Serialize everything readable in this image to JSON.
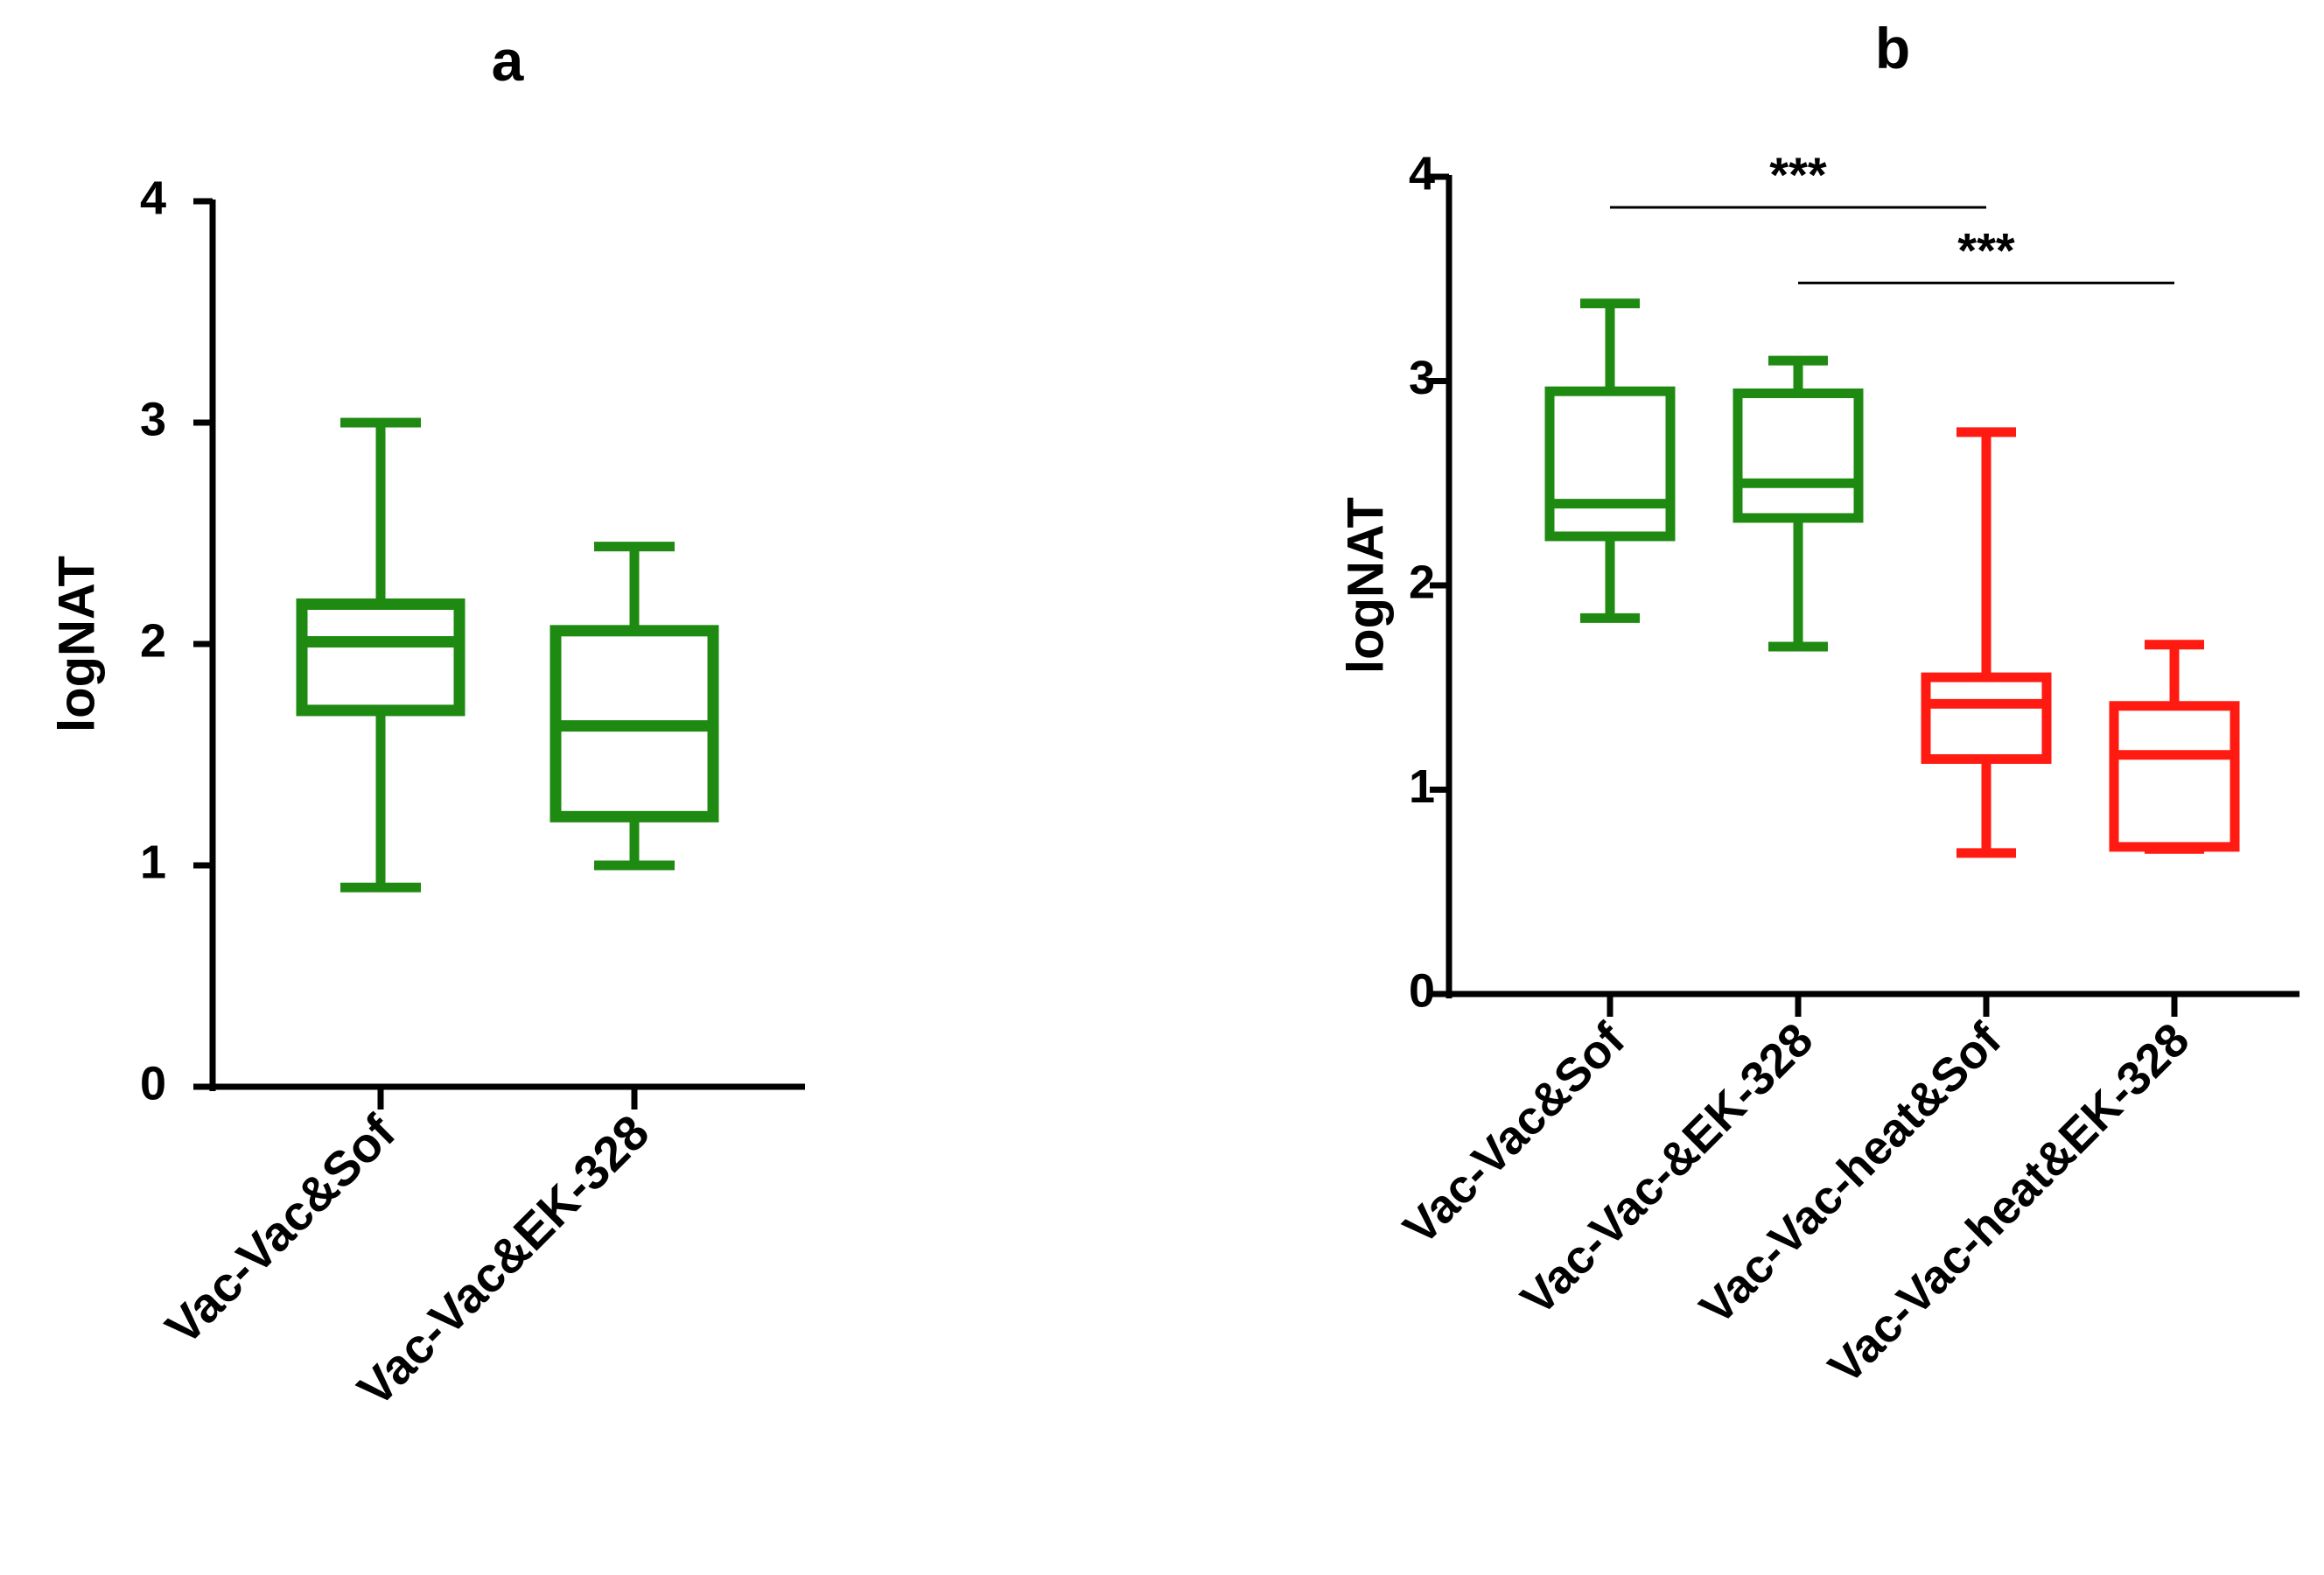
{
  "colors": {
    "green": "#1f8a12",
    "red": "#ff1a12",
    "axis": "#000000"
  },
  "chart_data": [
    {
      "panel": "a",
      "type": "box",
      "title": "a",
      "ylabel": "logNAT",
      "xlabel": "",
      "ylim": [
        0,
        4
      ],
      "yticks": [
        "0",
        "1",
        "2",
        "3",
        "4"
      ],
      "categories": [
        "Vac-Vac&Sof",
        "Vac-Vac&EK-328"
      ],
      "boxes": [
        {
          "label": "Vac-Vac&Sof",
          "min": 0.9,
          "q1": 1.7,
          "median": 2.01,
          "q3": 2.18,
          "max": 3.0,
          "color": "green"
        },
        {
          "label": "Vac-Vac&EK-328",
          "min": 1.0,
          "q1": 1.22,
          "median": 1.63,
          "q3": 2.06,
          "max": 2.44,
          "color": "green"
        }
      ],
      "significance": []
    },
    {
      "panel": "b",
      "type": "box",
      "title": "b",
      "ylabel": "logNAT",
      "xlabel": "",
      "ylim": [
        0,
        4
      ],
      "yticks": [
        "0",
        "1",
        "2",
        "3",
        "4"
      ],
      "categories": [
        "Vac-Vac&Sof",
        "Vac-Vac-&EK-328",
        "Vac-Vac-heat&Sof",
        "Vac-Vac-heat&EK-328"
      ],
      "boxes": [
        {
          "label": "Vac-Vac&Sof",
          "min": 1.84,
          "q1": 2.24,
          "median": 2.4,
          "q3": 2.95,
          "max": 3.38,
          "color": "green"
        },
        {
          "label": "Vac-Vac-&EK-328",
          "min": 1.7,
          "q1": 2.33,
          "median": 2.5,
          "q3": 2.94,
          "max": 3.1,
          "color": "green"
        },
        {
          "label": "Vac-Vac-heat&Sof",
          "min": 0.69,
          "q1": 1.15,
          "median": 1.42,
          "q3": 1.55,
          "max": 2.75,
          "color": "red"
        },
        {
          "label": "Vac-Vac-heat&EK-328",
          "min": 0.71,
          "q1": 0.72,
          "median": 1.17,
          "q3": 1.41,
          "max": 1.71,
          "color": "red"
        }
      ],
      "significance": [
        {
          "from": 0,
          "to": 2,
          "label": "***",
          "y": 3.85
        },
        {
          "from": 1,
          "to": 3,
          "label": "***",
          "y": 3.48
        }
      ]
    }
  ]
}
